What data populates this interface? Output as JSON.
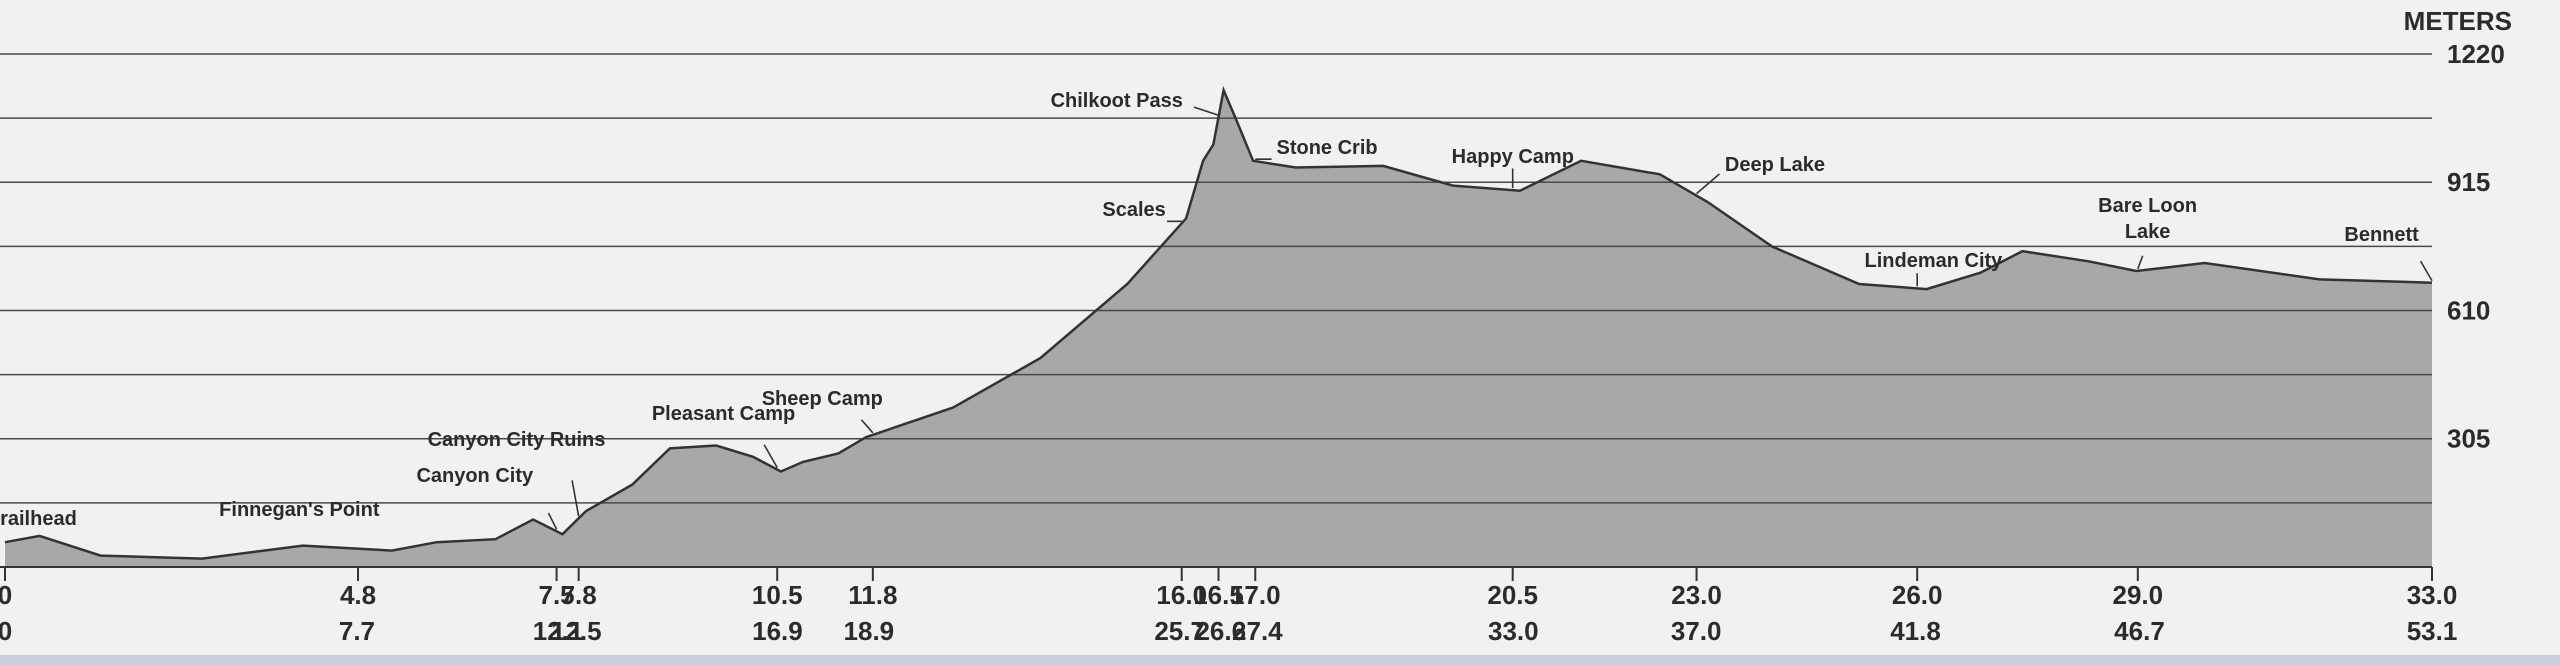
{
  "chart_data": {
    "type": "area",
    "y_axis_label": "METERS",
    "x": [
      0,
      0.47,
      1.3,
      2.68,
      4.05,
      5.26,
      5.87,
      6.67,
      7.18,
      7.58,
      7.9,
      8.53,
      9.04,
      9.67,
      10.17,
      10.55,
      10.85,
      11.33,
      11.71,
      12.89,
      14.08,
      15.26,
      16.06,
      16.29,
      16.43,
      16.57,
      16.74,
      16.97,
      17.55,
      18.74,
      19.69,
      20.6,
      21.43,
      22.5,
      23.15,
      24.03,
      25.21,
      26.13,
      26.86,
      27.43,
      28.33,
      28.98,
      29.91,
      31.47,
      33
    ],
    "values": [
      59,
      74,
      27,
      20,
      51,
      39,
      59,
      66,
      113,
      78,
      133,
      196,
      282,
      289,
      262,
      227,
      250,
      270,
      309,
      379,
      497,
      673,
      829,
      966,
      1005,
      1134,
      1064,
      966,
      950,
      954,
      907,
      895,
      966,
      934,
      868,
      762,
      673,
      661,
      700,
      751,
      727,
      704,
      723,
      684,
      676
    ],
    "color": "#a8a8a8",
    "line_color": "#333333",
    "xlim": [
      0,
      33
    ],
    "xticks": [
      0,
      4.8,
      7.5,
      7.8,
      10.5,
      11.8,
      {
        "value": 16,
        "label": "16.0"
      },
      16.5,
      {
        "value": 17,
        "label": "17.0"
      },
      20.5,
      {
        "value": 23,
        "label": "23.0"
      },
      {
        "value": 26,
        "label": "26.0"
      },
      {
        "value": 29,
        "label": "29.0"
      },
      {
        "value": 33,
        "label": "33.0"
      }
    ],
    "x2lim": [
      0,
      53.1
    ],
    "x2ticks": [
      0,
      7.7,
      12.1,
      12.5,
      16.9,
      18.9,
      25.7,
      26.6,
      27.4,
      {
        "value": 33,
        "label": "33.0"
      },
      {
        "value": 37,
        "label": "37.0"
      },
      41.8,
      46.7,
      53.1
    ],
    "ylim": [
      0,
      1220
    ],
    "yticks": [
      305,
      610,
      915,
      1220
    ],
    "minor_yticks": [
      152.5,
      457.5,
      762.5,
      1067.5
    ],
    "grid": true,
    "annotations": [
      {
        "text": "railhead",
        "x": 0
      },
      {
        "text": "Finnegan's Point",
        "x": 4
      },
      {
        "text": "Canyon City",
        "x": 7.5
      },
      {
        "text": "Canyon City Ruins",
        "x": 7.8
      },
      {
        "text": "Pleasant Camp",
        "x": 10.5
      },
      {
        "text": "Sheep Camp",
        "x": 11.8
      },
      {
        "text": "Chilkoot Pass",
        "x": 16.5
      },
      {
        "text": "Scales",
        "x": 16
      },
      {
        "text": "Stone Crib",
        "x": 17
      },
      {
        "text": "Happy Camp",
        "x": 20.5
      },
      {
        "text": "Deep Lake",
        "x": 23
      },
      {
        "text": "Lindeman City",
        "x": 26
      },
      {
        "text": "Bare Loon Lake",
        "x": 29
      },
      {
        "text": "Bennett",
        "x": 33
      }
    ]
  }
}
